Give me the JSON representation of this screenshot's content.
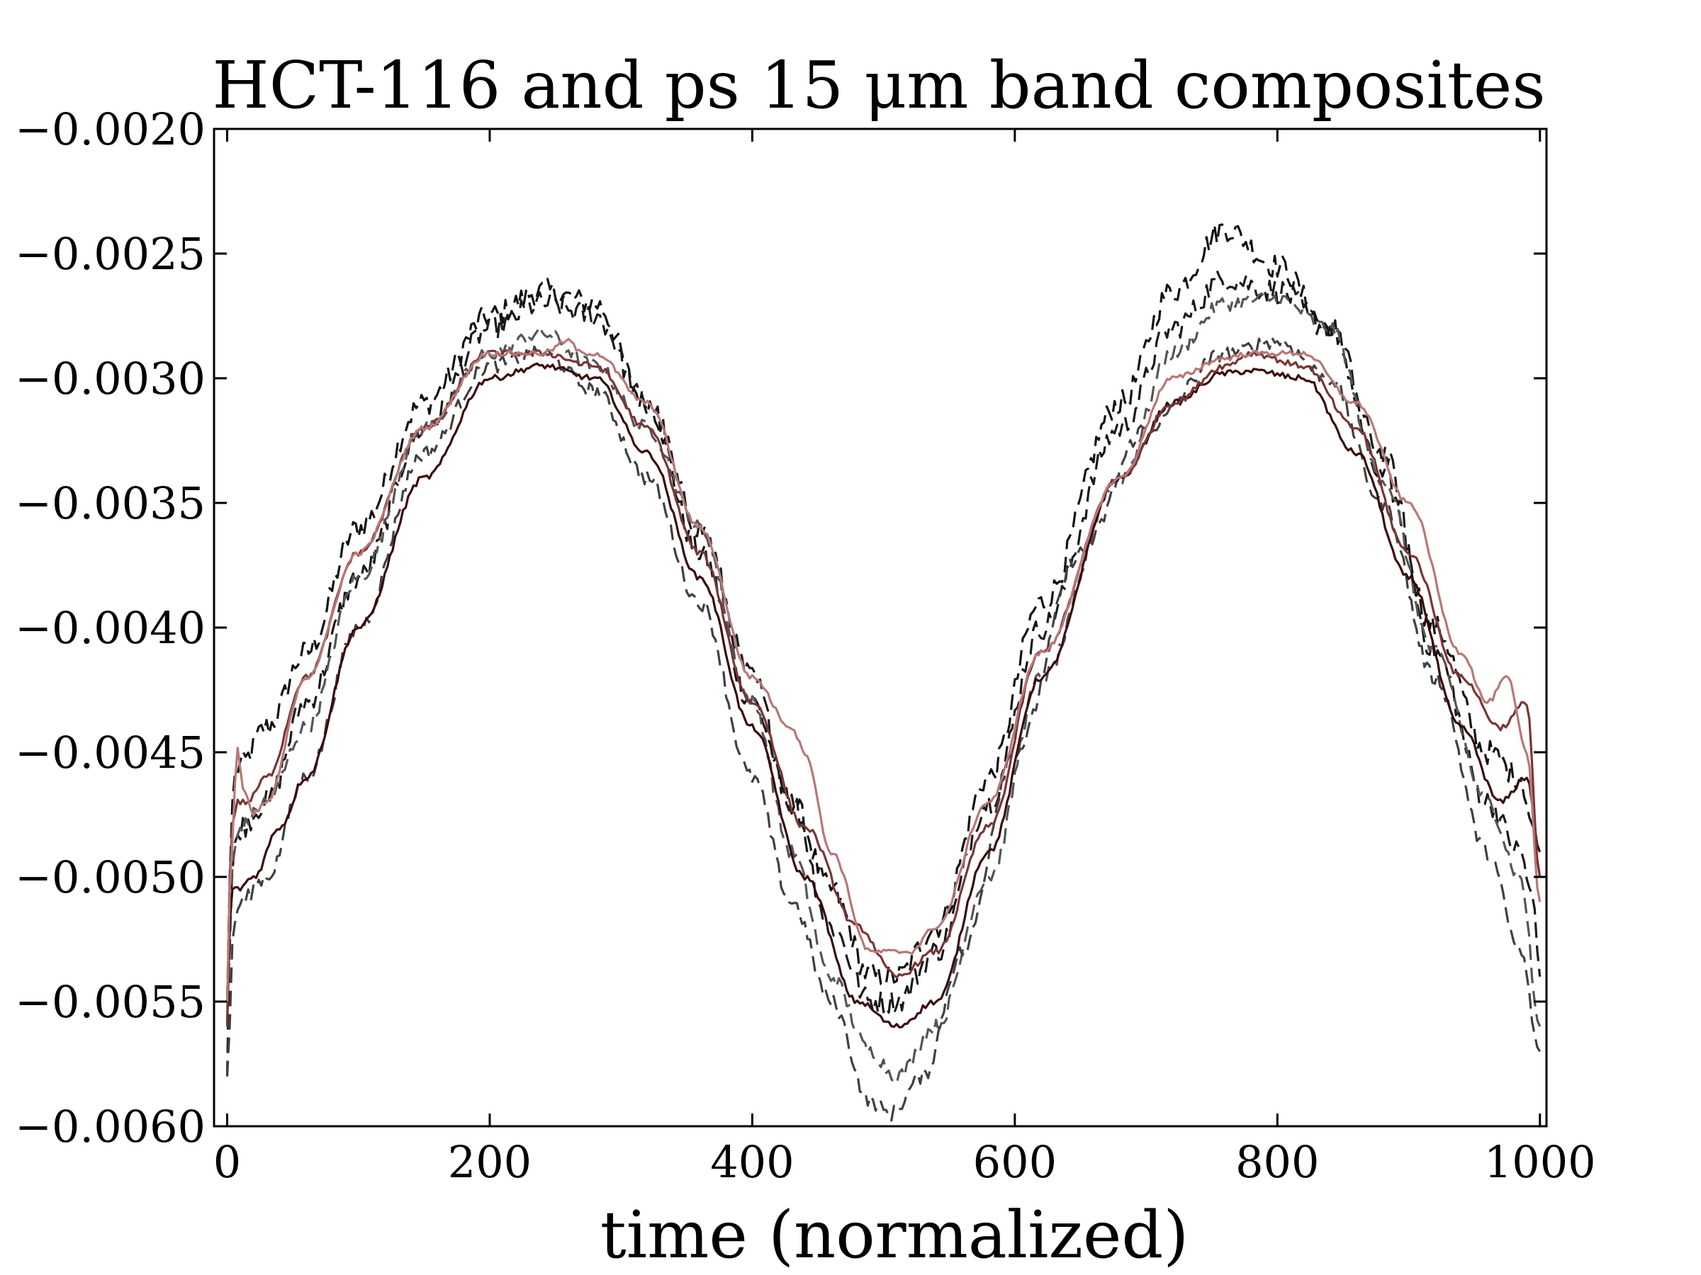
{
  "chart_data": {
    "type": "line",
    "title": "HCT-116 and ps 15 μm band composites",
    "xlabel": "time (normalized)",
    "ylabel": "",
    "xlim": [
      -10,
      1005
    ],
    "ylim": [
      -0.006,
      -0.002
    ],
    "xticks": [
      0,
      200,
      400,
      600,
      800,
      1000
    ],
    "yticks": [
      -0.002,
      -0.0025,
      -0.003,
      -0.0035,
      -0.004,
      -0.0045,
      -0.005,
      -0.0055,
      -0.006
    ],
    "xtick_labels": [
      "0",
      "200",
      "400",
      "600",
      "800",
      "1000"
    ],
    "ytick_labels": [
      "−0.0020",
      "−0.0025",
      "−0.0030",
      "−0.0035",
      "−0.0040",
      "−0.0045",
      "−0.0050",
      "−0.0055",
      "−0.0060"
    ],
    "grid": false,
    "legend": "none",
    "series": [
      {
        "color": "#111111",
        "dash": "dashed",
        "noise": 5e-05,
        "x": [
          0,
          2,
          5,
          10,
          30,
          60,
          100,
          150,
          200,
          240,
          280,
          320,
          360,
          400,
          430,
          460,
          490,
          510,
          540,
          580,
          620,
          680,
          720,
          760,
          800,
          840,
          880,
          920,
          960,
          985,
          995,
          1000
        ],
        "y": [
          -0.0055,
          -0.005,
          -0.0046,
          -0.00455,
          -0.0044,
          -0.0041,
          -0.0036,
          -0.0031,
          -0.00275,
          -0.00265,
          -0.0027,
          -0.0031,
          -0.0037,
          -0.0043,
          -0.0047,
          -0.00505,
          -0.0054,
          -0.0054,
          -0.0052,
          -0.0046,
          -0.0039,
          -0.0031,
          -0.00265,
          -0.0024,
          -0.00255,
          -0.0028,
          -0.0034,
          -0.004,
          -0.0045,
          -0.0046,
          -0.0048,
          -0.005
        ]
      },
      {
        "color": "#1a1a1a",
        "dash": "dashed",
        "noise": 5e-05,
        "x": [
          0,
          2,
          5,
          10,
          30,
          60,
          100,
          150,
          200,
          240,
          280,
          320,
          360,
          400,
          430,
          460,
          490,
          510,
          540,
          580,
          620,
          680,
          720,
          760,
          800,
          840,
          880,
          920,
          960,
          985,
          995,
          1000
        ],
        "y": [
          -0.0058,
          -0.0052,
          -0.0049,
          -0.0048,
          -0.0047,
          -0.0043,
          -0.0038,
          -0.0032,
          -0.0028,
          -0.0027,
          -0.00275,
          -0.0031,
          -0.0036,
          -0.0042,
          -0.0047,
          -0.0052,
          -0.0055,
          -0.0055,
          -0.0053,
          -0.0047,
          -0.004,
          -0.0032,
          -0.0028,
          -0.0026,
          -0.00265,
          -0.0028,
          -0.0033,
          -0.0041,
          -0.0047,
          -0.0049,
          -0.0051,
          -0.0054
        ]
      },
      {
        "color": "#555555",
        "dash": "dashed",
        "noise": 3e-05,
        "x": [
          0,
          5,
          10,
          30,
          60,
          100,
          150,
          200,
          240,
          280,
          320,
          360,
          400,
          430,
          460,
          490,
          510,
          540,
          580,
          620,
          680,
          720,
          760,
          800,
          840,
          880,
          920,
          960,
          985,
          1000
        ],
        "y": [
          -0.0055,
          -0.0049,
          -0.0048,
          -0.0047,
          -0.0044,
          -0.0038,
          -0.0032,
          -0.0029,
          -0.00282,
          -0.00295,
          -0.0032,
          -0.0036,
          -0.0043,
          -0.0049,
          -0.0054,
          -0.0057,
          -0.0058,
          -0.0056,
          -0.005,
          -0.0042,
          -0.0034,
          -0.0029,
          -0.0027,
          -0.00268,
          -0.0028,
          -0.0034,
          -0.0041,
          -0.0047,
          -0.005,
          -0.0056
        ]
      },
      {
        "color": "#404040",
        "dash": "dashed",
        "noise": 3e-05,
        "x": [
          0,
          5,
          10,
          30,
          60,
          100,
          150,
          200,
          240,
          280,
          320,
          360,
          400,
          430,
          460,
          490,
          505,
          530,
          560,
          600,
          650,
          700,
          760,
          800,
          840,
          880,
          920,
          960,
          985,
          1000
        ],
        "y": [
          -0.0058,
          -0.0052,
          -0.0051,
          -0.005,
          -0.0046,
          -0.004,
          -0.0033,
          -0.00295,
          -0.0029,
          -0.00305,
          -0.0034,
          -0.0039,
          -0.0046,
          -0.0051,
          -0.0055,
          -0.0059,
          -0.00595,
          -0.0058,
          -0.0053,
          -0.0045,
          -0.0037,
          -0.0032,
          -0.0029,
          -0.00285,
          -0.003,
          -0.0035,
          -0.0042,
          -0.0049,
          -0.0053,
          -0.0057
        ]
      },
      {
        "color": "#3a0a0a",
        "dash": "solid",
        "noise": 1.2e-05,
        "x": [
          0,
          3,
          8,
          20,
          40,
          60,
          100,
          150,
          200,
          240,
          280,
          320,
          360,
          400,
          440,
          480,
          510,
          540,
          580,
          620,
          680,
          720,
          760,
          780,
          820,
          860,
          900,
          940,
          970,
          990,
          1000
        ],
        "y": [
          -0.0056,
          -0.00505,
          -0.00505,
          -0.005,
          -0.0048,
          -0.0046,
          -0.004,
          -0.0034,
          -0.003,
          -0.00295,
          -0.003,
          -0.0033,
          -0.0038,
          -0.0044,
          -0.005,
          -0.0055,
          -0.0056,
          -0.0055,
          -0.0049,
          -0.0042,
          -0.0034,
          -0.0031,
          -0.00298,
          -0.00297,
          -0.003,
          -0.0033,
          -0.0038,
          -0.0044,
          -0.0047,
          -0.0046,
          -0.0049
        ]
      },
      {
        "color": "#7a3535",
        "dash": "solid",
        "noise": 1.2e-05,
        "x": [
          0,
          3,
          8,
          15,
          30,
          60,
          100,
          150,
          200,
          240,
          280,
          320,
          360,
          400,
          440,
          480,
          510,
          540,
          580,
          620,
          680,
          720,
          760,
          780,
          820,
          860,
          900,
          940,
          970,
          990,
          1000
        ],
        "y": [
          -0.0056,
          -0.0048,
          -0.0047,
          -0.0047,
          -0.0046,
          -0.0042,
          -0.0037,
          -0.0032,
          -0.0029,
          -0.0029,
          -0.00295,
          -0.0032,
          -0.0037,
          -0.0043,
          -0.0048,
          -0.0052,
          -0.0054,
          -0.0053,
          -0.0048,
          -0.0041,
          -0.0034,
          -0.0031,
          -0.00295,
          -0.0029,
          -0.00295,
          -0.0032,
          -0.0037,
          -0.0042,
          -0.0044,
          -0.0043,
          -0.005
        ]
      },
      {
        "color": "#b87777",
        "dash": "solid",
        "noise": 1e-05,
        "x": [
          0,
          3,
          8,
          12,
          20,
          30,
          60,
          100,
          150,
          200,
          240,
          260,
          270,
          280,
          320,
          360,
          400,
          430,
          440,
          460,
          490,
          510,
          520,
          540,
          580,
          620,
          680,
          720,
          760,
          780,
          820,
          860,
          900,
          940,
          960,
          975,
          990,
          1000
        ],
        "y": [
          -0.0055,
          -0.0049,
          -0.00448,
          -0.00465,
          -0.00475,
          -0.0047,
          -0.0042,
          -0.0037,
          -0.0032,
          -0.0029,
          -0.0029,
          -0.00285,
          -0.0029,
          -0.0029,
          -0.0031,
          -0.0036,
          -0.0042,
          -0.0044,
          -0.0045,
          -0.0049,
          -0.0053,
          -0.0053,
          -0.0053,
          -0.0052,
          -0.0047,
          -0.0041,
          -0.0034,
          -0.003,
          -0.00292,
          -0.0029,
          -0.0029,
          -0.0031,
          -0.0035,
          -0.0041,
          -0.0043,
          -0.0042,
          -0.0045,
          -0.0051
        ]
      }
    ]
  }
}
